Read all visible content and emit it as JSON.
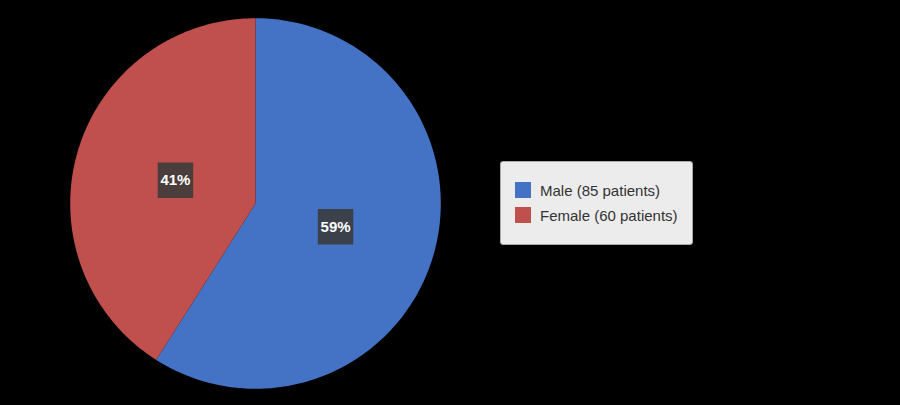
{
  "chart_data": {
    "type": "pie",
    "categories": [
      "Male (85 patients)",
      "Female (60 patients)"
    ],
    "values": [
      59,
      41
    ],
    "value_labels": [
      "59%",
      "41%"
    ],
    "colors": [
      "#4472C4",
      "#C0504D"
    ],
    "data_labels": true,
    "legend": "right"
  }
}
